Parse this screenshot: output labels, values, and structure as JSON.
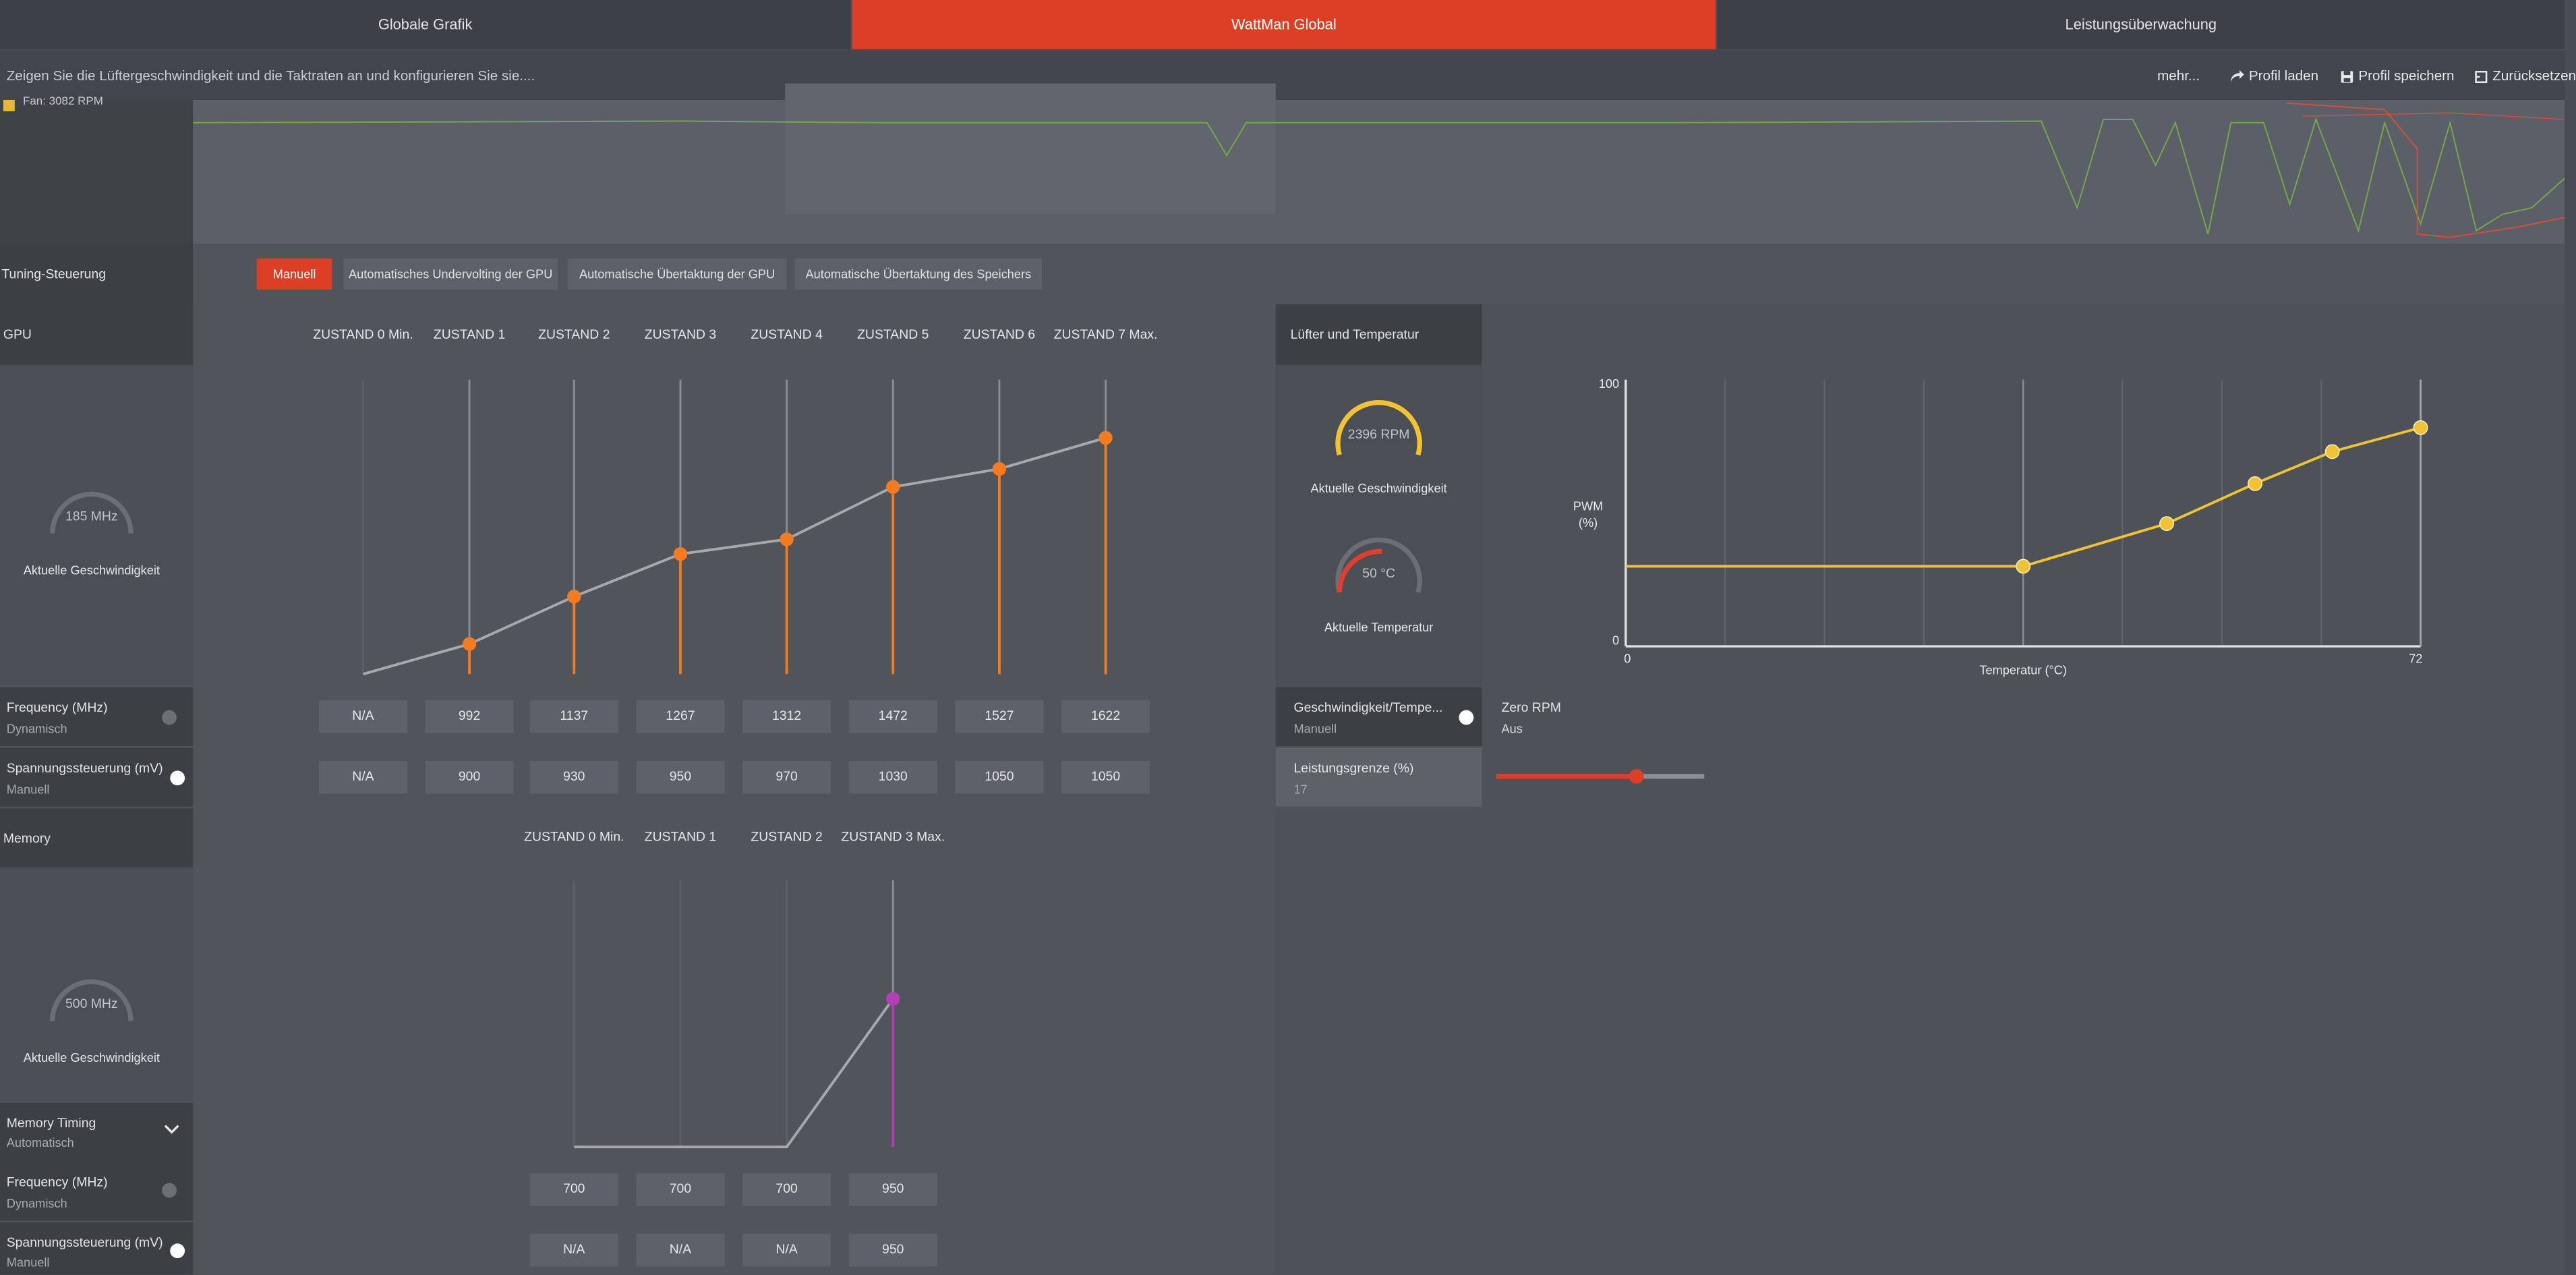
{
  "tabs": [
    {
      "label": "Globale Grafik"
    },
    {
      "label": "WattMan Global"
    },
    {
      "label": "Leistungsüberwachung"
    }
  ],
  "header": {
    "subtitle": "Zeigen Sie die Lüftergeschwindigkeit und die Taktraten an und konfigurieren Sie sie....",
    "more": "mehr...",
    "load_profile": "Profil laden",
    "save_profile": "Profil speichern",
    "reset": "Zurücksetzen"
  },
  "monitor": {
    "fan_label": "Fan: 3082 RPM"
  },
  "tuning": {
    "label": "Tuning-Steuerung",
    "modes": [
      {
        "label": "Manuell"
      },
      {
        "label": "Automatisches Undervolting der GPU"
      },
      {
        "label": "Automatische Übertaktung der GPU"
      },
      {
        "label": "Automatische Übertaktung des Speichers"
      }
    ]
  },
  "gpu": {
    "label": "GPU",
    "gauge": {
      "value": "185 MHz",
      "label": "Aktuelle Geschwindigkeit"
    },
    "states": [
      "ZUSTAND 0 Min.",
      "ZUSTAND 1",
      "ZUSTAND 2",
      "ZUSTAND 3",
      "ZUSTAND 4",
      "ZUSTAND 5",
      "ZUSTAND 6",
      "ZUSTAND 7 Max."
    ],
    "frequency": {
      "label": "Frequency (MHz)",
      "mode": "Dynamisch",
      "values": [
        "N/A",
        "992",
        "1137",
        "1267",
        "1312",
        "1472",
        "1527",
        "1622"
      ]
    },
    "voltage": {
      "label": "Spannungssteuerung (mV)",
      "mode": "Manuell",
      "values": [
        "N/A",
        "900",
        "930",
        "950",
        "970",
        "1030",
        "1050",
        "1050"
      ]
    }
  },
  "memory": {
    "label": "Memory",
    "gauge": {
      "value": "500 MHz",
      "label": "Aktuelle Geschwindigkeit"
    },
    "states": [
      "ZUSTAND 0 Min.",
      "ZUSTAND 1",
      "ZUSTAND 2",
      "ZUSTAND 3 Max."
    ],
    "timing": {
      "label": "Memory Timing",
      "mode": "Automatisch"
    },
    "frequency": {
      "label": "Frequency (MHz)",
      "mode": "Dynamisch",
      "values": [
        "700",
        "700",
        "700",
        "950"
      ]
    },
    "voltage": {
      "label": "Spannungssteuerung (mV)",
      "mode": "Manuell",
      "values": [
        "N/A",
        "N/A",
        "N/A",
        "950"
      ]
    }
  },
  "fan": {
    "label": "Lüfter und Temperatur",
    "speed_gauge": {
      "value": "2396 RPM",
      "label": "Aktuelle Geschwindigkeit",
      "color": "#f2c233"
    },
    "temp_gauge": {
      "value": "50 °C",
      "label": "Aktuelle Temperatur",
      "color": "#e03e2f"
    },
    "speed_temp": {
      "label": "Geschwindigkeit/Tempe...",
      "mode": "Manuell"
    },
    "zero_rpm": {
      "label": "Zero RPM",
      "value": "Aus"
    },
    "power_limit": {
      "label": "Leistungsgrenze (%)",
      "value": "17",
      "fraction": 0.67
    }
  },
  "chart_data": [
    {
      "type": "line",
      "id": "gpu-curve",
      "categories": [
        "ZUSTAND 0 Min.",
        "ZUSTAND 1",
        "ZUSTAND 2",
        "ZUSTAND 3",
        "ZUSTAND 4",
        "ZUSTAND 5",
        "ZUSTAND 6",
        "ZUSTAND 7 Max."
      ],
      "series": [
        {
          "values": [
            null,
            992,
            1137,
            1267,
            1312,
            1472,
            1527,
            1622
          ]
        },
        {
          "values": [
            null,
            900,
            930,
            950,
            970,
            1030,
            1050,
            1050
          ]
        }
      ],
      "color": "#f47b20"
    },
    {
      "type": "line",
      "id": "memory-curve",
      "categories": [
        "ZUSTAND 0 Min.",
        "ZUSTAND 1",
        "ZUSTAND 2",
        "ZUSTAND 3 Max."
      ],
      "series": [
        {
          "values": [
            700,
            700,
            700,
            950
          ]
        }
      ],
      "color": "#b43fb3"
    },
    {
      "type": "line",
      "id": "fan-curve",
      "xlabel": "Temperatur (°C)",
      "ylabel": "PWM (%)",
      "xlim": [
        0,
        72
      ],
      "ylim": [
        0,
        100
      ],
      "x_tick_labels": [
        "0",
        "72"
      ],
      "y_tick_labels": [
        "0",
        "100"
      ],
      "points": [
        {
          "x": 36,
          "y": 30
        },
        {
          "x": 49,
          "y": 46
        },
        {
          "x": 57,
          "y": 61
        },
        {
          "x": 64,
          "y": 73
        },
        {
          "x": 72,
          "y": 82
        }
      ],
      "color": "#f2c233"
    }
  ]
}
